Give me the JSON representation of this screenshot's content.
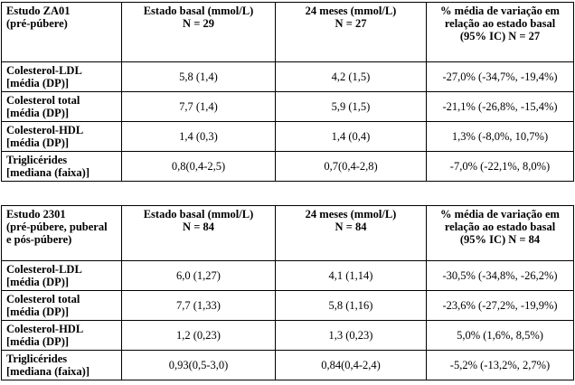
{
  "tables": [
    {
      "header": [
        [
          "Estudo ZA01",
          "(pré-púbere)"
        ],
        [
          "Estado basal (mmol/L)",
          "N = 29"
        ],
        [
          "24 meses (mmol/L)",
          "N = 27"
        ],
        [
          "% média de variação em",
          "relação ao estado basal",
          "(95% IC) N = 27"
        ]
      ],
      "rows": [
        [
          [
            "Colesterol-LDL",
            "[média (DP)]"
          ],
          [
            "5,8 (1,4)"
          ],
          [
            "4,2 (1,5)"
          ],
          [
            "-27,0% (-34,7%, -19,4%)"
          ]
        ],
        [
          [
            "Colesterol total",
            "[média (DP)]"
          ],
          [
            "7,7 (1,4)"
          ],
          [
            "5,9 (1,5)"
          ],
          [
            "-21,1% (-26,8%, -15,4%)"
          ]
        ],
        [
          [
            "Colesterol-HDL",
            "[média (DP)]"
          ],
          [
            "1,4 (0,3)"
          ],
          [
            "1,4 (0,4)"
          ],
          [
            "1,3% (-8,0%, 10,7%)"
          ]
        ],
        [
          [
            "Triglicérides",
            "[mediana (faixa)]"
          ],
          [
            "0,8(0,4-2,5)"
          ],
          [
            "0,7(0,4-2,8)"
          ],
          [
            "-7,0% (-22,1%, 8,0%)"
          ]
        ]
      ]
    },
    {
      "header": [
        [
          "Estudo 2301",
          "(pré-púbere, puberal",
          "e pós-púbere)"
        ],
        [
          "Estado basal (mmol/L)",
          "N = 84"
        ],
        [
          "24 meses (mmol/L)",
          "N = 84"
        ],
        [
          "% média de variação em",
          "relação ao estado basal",
          "(95% IC) N = 84"
        ]
      ],
      "rows": [
        [
          [
            "Colesterol-LDL",
            "[média (DP)]"
          ],
          [
            "6,0 (1,27)"
          ],
          [
            "4,1 (1,14)"
          ],
          [
            "-30,5% (-34,8%, -26,2%)"
          ]
        ],
        [
          [
            "Colesterol total",
            "[média (DP)]"
          ],
          [
            "7,7 (1,33)"
          ],
          [
            "5,8 (1,16)"
          ],
          [
            "-23,6% (-27,2%, -19,9%)"
          ]
        ],
        [
          [
            "Colesterol-HDL",
            "[média (DP)]"
          ],
          [
            "1,2 (0,23)"
          ],
          [
            "1,3 (0,23)"
          ],
          [
            "5,0% (1,6%, 8,5%)"
          ]
        ],
        [
          [
            "Triglicérides",
            "[mediana (faixa)]"
          ],
          [
            "0,93(0,5-3,0)"
          ],
          [
            "0,84(0,4-2,4)"
          ],
          [
            "-5,2% (-13,2%, 2,7%)"
          ]
        ]
      ]
    }
  ]
}
